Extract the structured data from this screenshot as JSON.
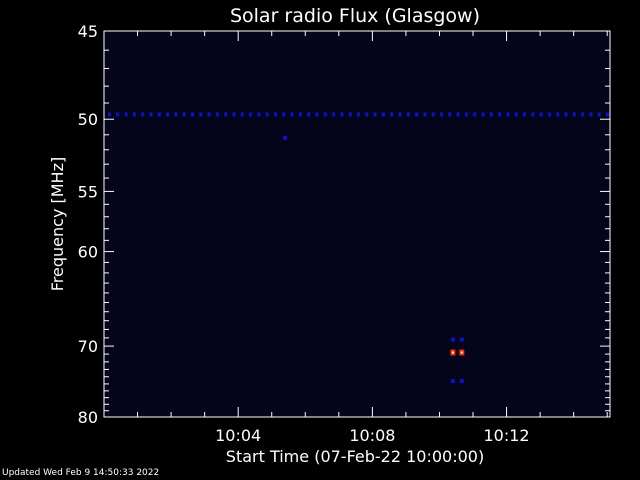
{
  "chart_data": {
    "type": "heatmap",
    "title": "Solar radio Flux (Glasgow)",
    "xlabel": "Start Time (07-Feb-22 10:00:00)",
    "ylabel": "Frequency [MHz]",
    "x_unit": "time",
    "xlim": [
      "10:00:00",
      "10:15:05"
    ],
    "ylim": [
      45,
      80
    ],
    "y_inverted": true,
    "x_ticks": [
      "10:04",
      "10:08",
      "10:12"
    ],
    "y_ticks": [
      45,
      50,
      55,
      60,
      70,
      80
    ],
    "colors": {
      "background": "#000000",
      "plot_background": "#04041a",
      "axis": "#ffffff",
      "low": "#1010c8",
      "high": "#ff2a00"
    },
    "features": [
      {
        "kind": "row",
        "frequency": 49.7,
        "start": "10:00:00",
        "end": "10:15:05",
        "intensity": "low"
      },
      {
        "kind": "point",
        "time": "10:05:24",
        "frequency": 51.2,
        "intensity": "low"
      },
      {
        "kind": "point",
        "time": "10:10:24",
        "frequency": 69.2,
        "intensity": "low"
      },
      {
        "kind": "point",
        "time": "10:10:40",
        "frequency": 69.2,
        "intensity": "low"
      },
      {
        "kind": "point",
        "time": "10:10:24",
        "frequency": 70.8,
        "intensity": "high"
      },
      {
        "kind": "point",
        "time": "10:10:40",
        "frequency": 70.8,
        "intensity": "high"
      },
      {
        "kind": "point",
        "time": "10:10:24",
        "frequency": 74.6,
        "intensity": "low"
      },
      {
        "kind": "point",
        "time": "10:10:40",
        "frequency": 74.6,
        "intensity": "low"
      }
    ]
  },
  "footer": {
    "updated": "Updated Wed Feb  9 14:50:33 2022"
  }
}
